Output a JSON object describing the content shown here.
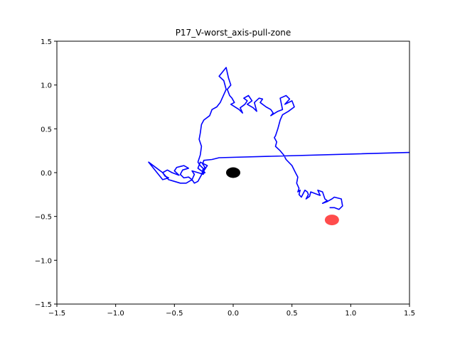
{
  "chart_data": {
    "type": "line",
    "title": "P17_V-worst_axis-pull-zone",
    "xlabel": "",
    "ylabel": "",
    "xlim": [
      -1.5,
      1.5
    ],
    "ylim": [
      -1.5,
      1.5
    ],
    "x_ticks": [
      -1.5,
      -1.0,
      -0.5,
      0.0,
      0.5,
      1.0,
      1.5
    ],
    "x_tick_labels": [
      "−1.5",
      "−1.0",
      "−0.5",
      "0.0",
      "0.5",
      "1.0",
      "1.5"
    ],
    "y_ticks": [
      1.5,
      1.0,
      0.5,
      0.0,
      -0.5,
      -1.0,
      -1.5
    ],
    "y_tick_labels": [
      "1.5",
      "1.0",
      "0.5",
      "0.0",
      "−0.5",
      "−1.0",
      "−1.5"
    ],
    "grid": false,
    "series": [
      {
        "color": "#0000ff",
        "x": [
          1.5,
          -0.12,
          -0.18,
          -0.25,
          -0.26,
          -0.24,
          -0.26,
          -0.24,
          -0.27,
          -0.25,
          -0.28,
          -0.3,
          -0.28,
          -0.27,
          -0.29,
          -0.28,
          -0.27,
          -0.25,
          -0.2,
          -0.18,
          -0.14,
          -0.11,
          -0.06,
          -0.08,
          -0.12,
          -0.06,
          -0.04,
          -0.02,
          -0.05,
          -0.03,
          -0.01,
          0.01,
          -0.02,
          0.05,
          0.08,
          0.06,
          0.1,
          0.12,
          0.09,
          0.13,
          0.16,
          0.12,
          0.17,
          0.2,
          0.18,
          0.22,
          0.25,
          0.23,
          0.28,
          0.32,
          0.34,
          0.32,
          0.38,
          0.42,
          0.4,
          0.45,
          0.48,
          0.44,
          0.5,
          0.52,
          0.47,
          0.42,
          0.4,
          0.38,
          0.36,
          0.35,
          0.37,
          0.36,
          0.4,
          0.43,
          0.45,
          0.5,
          0.53,
          0.55,
          0.54,
          0.56,
          0.55,
          0.57,
          0.56,
          0.58,
          0.61,
          0.63,
          0.64,
          0.62,
          0.65,
          0.66,
          0.7,
          0.74,
          0.72,
          0.76,
          0.78,
          0.8,
          0.76,
          0.8,
          0.84,
          0.86,
          0.92,
          0.93,
          0.9,
          0.86,
          0.82
        ],
        "y": [
          0.23,
          0.17,
          0.15,
          0.14,
          0.1,
          0.06,
          0.03,
          0.0,
          -0.02,
          0.04,
          0.08,
          0.12,
          0.2,
          0.3,
          0.38,
          0.45,
          0.55,
          0.6,
          0.65,
          0.72,
          0.75,
          0.8,
          0.95,
          1.05,
          1.1,
          1.2,
          1.08,
          1.0,
          0.95,
          0.88,
          0.85,
          0.8,
          0.78,
          0.72,
          0.68,
          0.74,
          0.78,
          0.82,
          0.85,
          0.88,
          0.82,
          0.78,
          0.74,
          0.7,
          0.8,
          0.85,
          0.84,
          0.8,
          0.75,
          0.72,
          0.68,
          0.65,
          0.7,
          0.72,
          0.85,
          0.88,
          0.84,
          0.78,
          0.82,
          0.75,
          0.7,
          0.66,
          0.6,
          0.5,
          0.42,
          0.4,
          0.35,
          0.3,
          0.25,
          0.2,
          0.15,
          0.08,
          0.0,
          -0.05,
          -0.12,
          -0.18,
          -0.22,
          -0.2,
          -0.25,
          -0.28,
          -0.2,
          -0.22,
          -0.25,
          -0.3,
          -0.27,
          -0.22,
          -0.24,
          -0.26,
          -0.2,
          -0.22,
          -0.3,
          -0.32,
          -0.35,
          -0.33,
          -0.3,
          -0.28,
          -0.3,
          -0.38,
          -0.42,
          -0.4,
          -0.4
        ]
      },
      {
        "color": "#0000ff",
        "x": [
          -0.25,
          -0.3,
          -0.28,
          -0.22,
          -0.25,
          -0.28,
          -0.3,
          -0.33,
          -0.35,
          -0.38,
          -0.42,
          -0.45,
          -0.43,
          -0.38,
          -0.42,
          -0.48,
          -0.5,
          -0.46,
          -0.52,
          -0.56,
          -0.6,
          -0.58,
          -0.55,
          -0.6,
          -0.72,
          -0.65,
          -0.6,
          -0.55,
          -0.5,
          -0.45,
          -0.4,
          -0.35,
          -0.33,
          -0.35,
          -0.3,
          -0.25
        ],
        "y": [
          0.0,
          0.05,
          0.12,
          0.08,
          0.02,
          -0.05,
          -0.1,
          -0.12,
          -0.08,
          -0.05,
          -0.06,
          -0.02,
          0.03,
          0.05,
          0.08,
          0.06,
          0.02,
          -0.03,
          0.0,
          0.03,
          0.0,
          -0.04,
          -0.06,
          -0.08,
          0.12,
          0.05,
          0.0,
          -0.08,
          -0.1,
          -0.12,
          -0.12,
          -0.08,
          -0.02,
          0.02,
          0.0,
          -0.02
        ]
      }
    ],
    "markers": [
      {
        "x": 0.0,
        "y": 0.0,
        "color": "#000000"
      },
      {
        "x": 0.84,
        "y": -0.54,
        "color": "#ff0000"
      }
    ]
  }
}
